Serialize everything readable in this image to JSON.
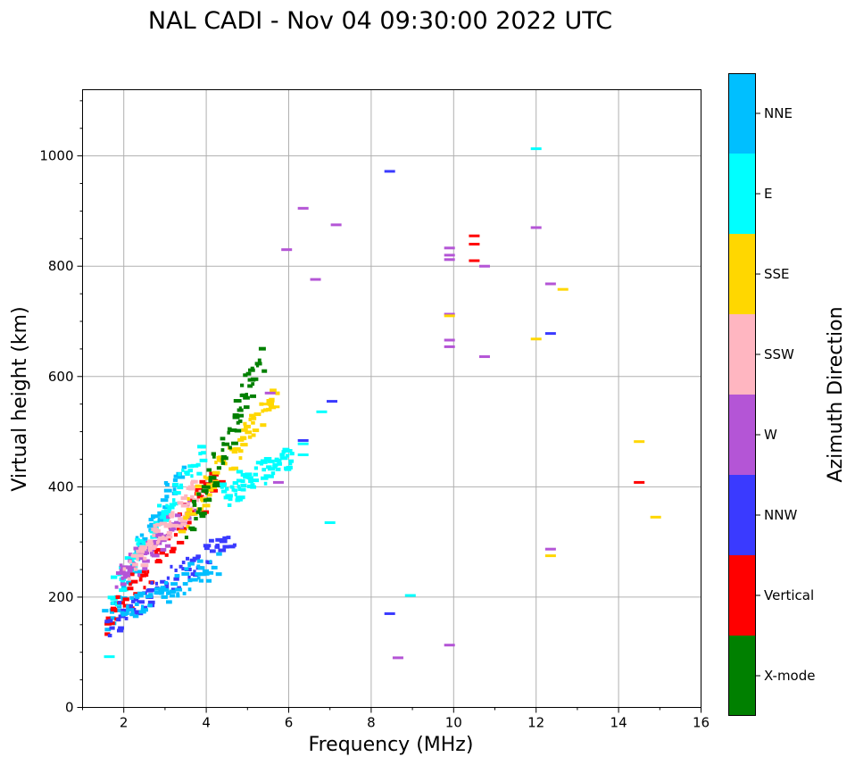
{
  "chart_data": {
    "type": "scatter",
    "title": "NAL CADI - Nov 04 09:30:00 2022 UTC",
    "xlabel": "Frequency (MHz)",
    "ylabel": "Virtual height (km)",
    "xlim": [
      1,
      16
    ],
    "ylim": [
      0,
      1120
    ],
    "xticks": [
      2,
      4,
      6,
      8,
      10,
      12,
      14,
      16
    ],
    "yticks": [
      0,
      200,
      400,
      600,
      800,
      1000
    ],
    "grid": true,
    "colorbar": {
      "label": "Azimuth Direction",
      "categories": [
        {
          "name": "X-mode",
          "color": "#008000"
        },
        {
          "name": "Vertical",
          "color": "#ff0000"
        },
        {
          "name": "NNW",
          "color": "#3a3aff"
        },
        {
          "name": "W",
          "color": "#b455d6"
        },
        {
          "name": "SSW",
          "color": "#ffb6c1"
        },
        {
          "name": "SSE",
          "color": "#ffd700"
        },
        {
          "name": "E",
          "color": "#00ffff"
        },
        {
          "name": "NNE",
          "color": "#00bfff"
        }
      ]
    },
    "isolated_echoes": [
      {
        "f": 12.0,
        "h": 1013,
        "dir": "E"
      },
      {
        "f": 8.45,
        "h": 972,
        "dir": "NNW"
      },
      {
        "f": 6.35,
        "h": 905,
        "dir": "W"
      },
      {
        "f": 7.15,
        "h": 875,
        "dir": "W"
      },
      {
        "f": 5.95,
        "h": 830,
        "dir": "W"
      },
      {
        "f": 12.0,
        "h": 870,
        "dir": "W"
      },
      {
        "f": 10.5,
        "h": 855,
        "dir": "Vertical"
      },
      {
        "f": 10.5,
        "h": 840,
        "dir": "Vertical"
      },
      {
        "f": 9.9,
        "h": 833,
        "dir": "W"
      },
      {
        "f": 9.9,
        "h": 820,
        "dir": "W"
      },
      {
        "f": 9.9,
        "h": 812,
        "dir": "W"
      },
      {
        "f": 10.5,
        "h": 810,
        "dir": "Vertical"
      },
      {
        "f": 10.75,
        "h": 800,
        "dir": "W"
      },
      {
        "f": 6.65,
        "h": 776,
        "dir": "W"
      },
      {
        "f": 12.35,
        "h": 768,
        "dir": "W"
      },
      {
        "f": 12.65,
        "h": 758,
        "dir": "SSE"
      },
      {
        "f": 9.9,
        "h": 713,
        "dir": "W"
      },
      {
        "f": 9.9,
        "h": 710,
        "dir": "SSE"
      },
      {
        "f": 12.35,
        "h": 678,
        "dir": "NNW"
      },
      {
        "f": 12.0,
        "h": 668,
        "dir": "SSE"
      },
      {
        "f": 9.9,
        "h": 666,
        "dir": "W"
      },
      {
        "f": 9.9,
        "h": 654,
        "dir": "W"
      },
      {
        "f": 10.75,
        "h": 636,
        "dir": "W"
      },
      {
        "f": 7.05,
        "h": 555,
        "dir": "NNW"
      },
      {
        "f": 6.8,
        "h": 536,
        "dir": "E"
      },
      {
        "f": 6.35,
        "h": 484,
        "dir": "NNW"
      },
      {
        "f": 6.35,
        "h": 478,
        "dir": "E"
      },
      {
        "f": 6.35,
        "h": 458,
        "dir": "E"
      },
      {
        "f": 5.55,
        "h": 570,
        "dir": "W"
      },
      {
        "f": 5.45,
        "h": 550,
        "dir": "SSE"
      },
      {
        "f": 5.65,
        "h": 545,
        "dir": "SSE"
      },
      {
        "f": 5.75,
        "h": 408,
        "dir": "W"
      },
      {
        "f": 14.5,
        "h": 482,
        "dir": "SSE"
      },
      {
        "f": 14.5,
        "h": 408,
        "dir": "Vertical"
      },
      {
        "f": 14.9,
        "h": 345,
        "dir": "SSE"
      },
      {
        "f": 7.0,
        "h": 335,
        "dir": "E"
      },
      {
        "f": 12.35,
        "h": 287,
        "dir": "W"
      },
      {
        "f": 12.35,
        "h": 275,
        "dir": "SSE"
      },
      {
        "f": 8.95,
        "h": 203,
        "dir": "E"
      },
      {
        "f": 8.45,
        "h": 170,
        "dir": "NNW"
      },
      {
        "f": 9.9,
        "h": 113,
        "dir": "W"
      },
      {
        "f": 8.65,
        "h": 90,
        "dir": "W"
      },
      {
        "f": 1.65,
        "h": 92,
        "dir": "E"
      }
    ],
    "dense_cluster": {
      "description_only_for_render": false,
      "traces": [
        {
          "dir": "NNE",
          "from": [
            1.5,
            150
          ],
          "to": [
            3.3,
            430
          ]
        },
        {
          "dir": "E",
          "from": [
            1.6,
            200
          ],
          "to": [
            3.9,
            470
          ]
        },
        {
          "dir": "Vertical",
          "from": [
            1.5,
            145
          ],
          "to": [
            4.2,
            420
          ]
        },
        {
          "dir": "NNW",
          "from": [
            1.55,
            150
          ],
          "to": [
            4.6,
            310
          ]
        },
        {
          "dir": "W",
          "from": [
            1.8,
            230
          ],
          "to": [
            3.6,
            360
          ]
        },
        {
          "dir": "SSW",
          "from": [
            2.1,
            250
          ],
          "to": [
            3.8,
            400
          ]
        },
        {
          "dir": "SSE",
          "from": [
            3.4,
            340
          ],
          "to": [
            5.6,
            560
          ]
        },
        {
          "dir": "X-mode",
          "from": [
            3.6,
            330
          ],
          "to": [
            5.3,
            640
          ]
        },
        {
          "dir": "E",
          "from": [
            4.3,
            380
          ],
          "to": [
            6.0,
            460
          ]
        },
        {
          "dir": "NNE",
          "from": [
            1.9,
            170
          ],
          "to": [
            4.2,
            260
          ]
        }
      ]
    }
  }
}
